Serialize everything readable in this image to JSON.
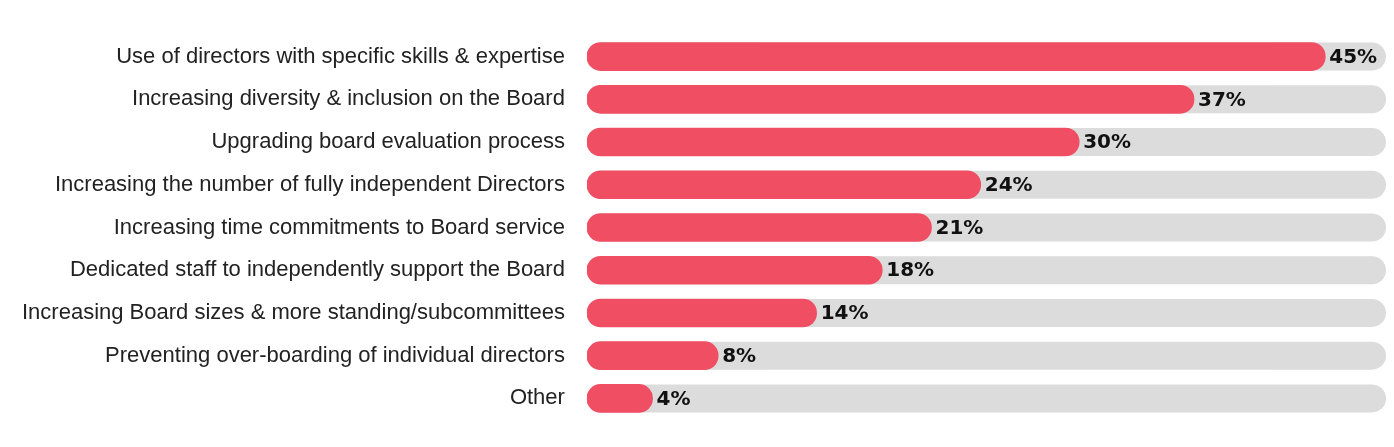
{
  "chart_data": {
    "type": "bar",
    "orientation": "horizontal",
    "categories": [
      "Use of directors with specific skills & expertise",
      "Increasing diversity & inclusion on the Board",
      "Upgrading board evaluation process",
      "Increasing the number of fully independent Directors",
      "Increasing time commitments to Board service",
      "Dedicated staff to independently support the Board",
      "Increasing Board sizes & more standing/subcommittees",
      "Preventing over-boarding of individual directors",
      "Other"
    ],
    "values": [
      45,
      37,
      30,
      24,
      21,
      18,
      14,
      8,
      4
    ],
    "value_labels": [
      "45%",
      "37%",
      "30%",
      "24%",
      "21%",
      "18%",
      "14%",
      "8%",
      "4%"
    ],
    "color": "#f04e62",
    "xlim": [
      0,
      48.7
    ],
    "tick_labels": "y",
    "grid": false,
    "legend": false
  }
}
